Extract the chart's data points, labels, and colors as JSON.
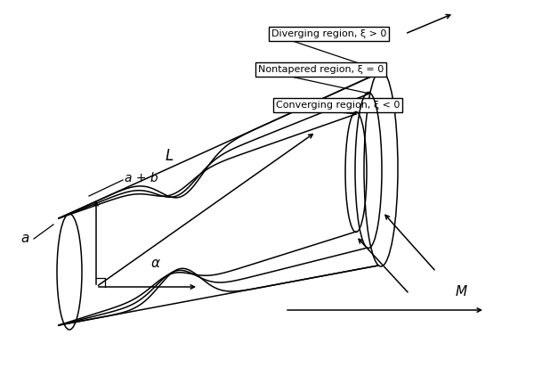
{
  "bg_color": "#ffffff",
  "line_color": "#000000",
  "fig_width": 6.0,
  "fig_height": 4.22,
  "dpi": 100,
  "labels": {
    "diverging": "Diverging region, ξ > 0",
    "nontapered": "Nontapered region, ξ = 0",
    "converging": "Converging region, ξ < 0",
    "L": "L",
    "a": "a",
    "a_plus_b": "a + b",
    "alpha": "α",
    "M": "M"
  }
}
